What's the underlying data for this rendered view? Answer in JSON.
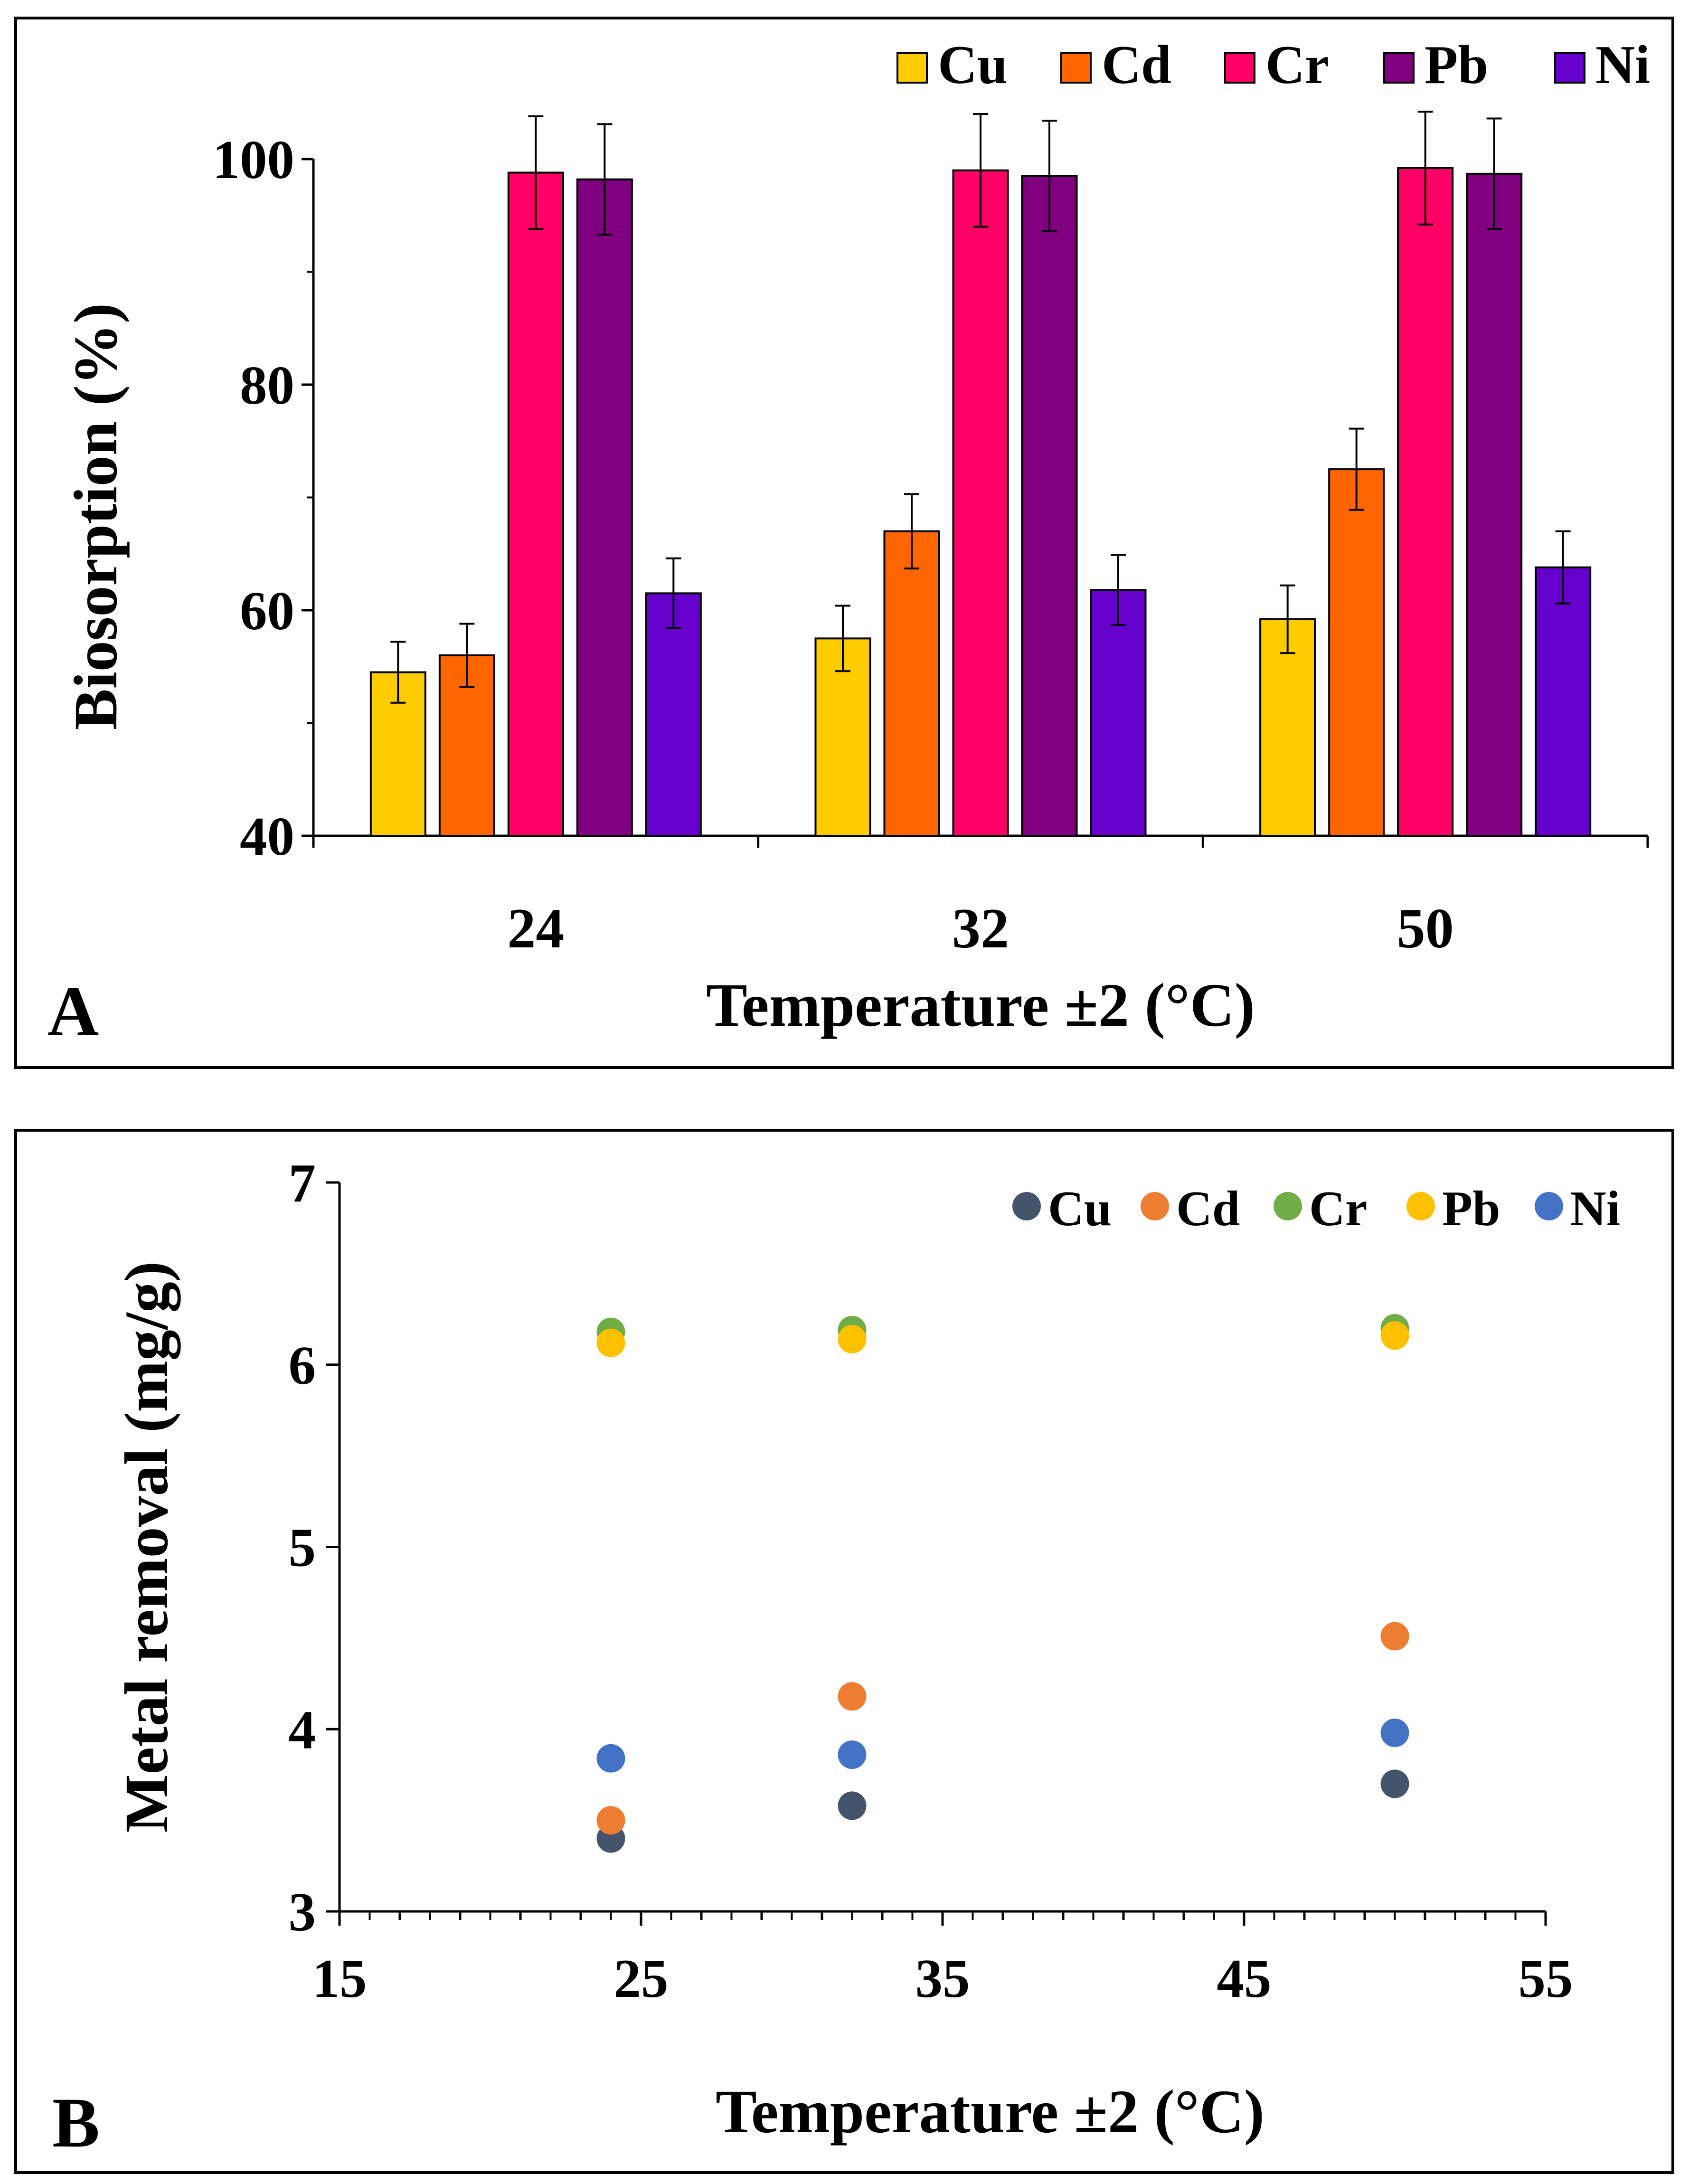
{
  "panels": [
    {
      "label": "A"
    },
    {
      "label": "B"
    }
  ],
  "chart_data": [
    {
      "type": "bar",
      "panel": "A",
      "title": "",
      "xlabel": "Temperature ±2 (°C)",
      "ylabel": "Biosorption (%)",
      "ylim": [
        40,
        100
      ],
      "yticks": [
        "40",
        "60",
        "80",
        "100"
      ],
      "categories": [
        "24",
        "32",
        "50"
      ],
      "legend_position": "top-right",
      "series": [
        {
          "name": "Cu",
          "color": "#FFCC00",
          "values": [
            54.5,
            57.5,
            59.2
          ],
          "errors": [
            2.7,
            2.9,
            3.0
          ]
        },
        {
          "name": "Cd",
          "color": "#FF6600",
          "values": [
            56.0,
            67.0,
            72.5
          ],
          "errors": [
            2.8,
            3.3,
            3.6
          ]
        },
        {
          "name": "Cr",
          "color": "#FF0066",
          "values": [
            98.8,
            99.0,
            99.2
          ],
          "errors": [
            5.0,
            5.0,
            5.0
          ]
        },
        {
          "name": "Pb",
          "color": "#800080",
          "values": [
            98.2,
            98.5,
            98.7
          ],
          "errors": [
            4.9,
            4.9,
            4.9
          ]
        },
        {
          "name": "Ni",
          "color": "#6600CC",
          "values": [
            61.5,
            61.8,
            63.8
          ],
          "errors": [
            3.1,
            3.1,
            3.2
          ]
        }
      ]
    },
    {
      "type": "scatter",
      "panel": "B",
      "title": "",
      "xlabel": "Temperature ±2 (°C)",
      "ylabel": "Metal removal (mg/g)",
      "xlim": [
        15,
        55
      ],
      "ylim": [
        3,
        7
      ],
      "xticks": [
        "15",
        "25",
        "35",
        "45",
        "55"
      ],
      "yticks": [
        "3",
        "4",
        "5",
        "6",
        "7"
      ],
      "legend_position": "top-right",
      "series": [
        {
          "name": "Cu",
          "color": "#44546A",
          "x": [
            24,
            32,
            50
          ],
          "y": [
            3.4,
            3.58,
            3.7
          ]
        },
        {
          "name": "Cd",
          "color": "#ED7D31",
          "x": [
            24,
            32,
            50
          ],
          "y": [
            3.5,
            4.18,
            4.51
          ]
        },
        {
          "name": "Cr",
          "color": "#70AD47",
          "x": [
            24,
            32,
            50
          ],
          "y": [
            6.18,
            6.19,
            6.2
          ]
        },
        {
          "name": "Pb",
          "color": "#FFC000",
          "x": [
            24,
            32,
            50
          ],
          "y": [
            6.12,
            6.14,
            6.16
          ]
        },
        {
          "name": "Ni",
          "color": "#4472C4",
          "x": [
            24,
            32,
            50
          ],
          "y": [
            3.84,
            3.86,
            3.98
          ]
        }
      ]
    }
  ]
}
